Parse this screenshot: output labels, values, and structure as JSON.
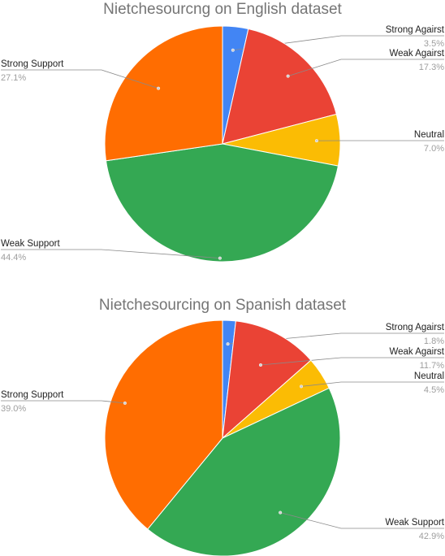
{
  "chart_data": [
    {
      "type": "pie",
      "title": "Nietchesourcng on English dataset",
      "categories": [
        "Strong Against",
        "Weak Against",
        "Neutral",
        "Weak Support",
        "Strong Support"
      ],
      "display_labels": [
        "Strong Agairst",
        "Weak Agairst",
        "Neutral",
        "Weak Support",
        "Strong Support"
      ],
      "values": [
        3.5,
        17.3,
        7.0,
        44.4,
        27.1
      ],
      "value_labels": [
        "3.5%",
        "17.3%",
        "7.0%",
        "44.4%",
        "27.1%"
      ],
      "colors": [
        "#4285f4",
        "#ea4335",
        "#fbbc04",
        "#34a853",
        "#ff6d01"
      ]
    },
    {
      "type": "pie",
      "title": "Nietchesourcing on Spanish dataset",
      "categories": [
        "Strong Against",
        "Weak Against",
        "Neutral",
        "Weak Support",
        "Strong Support"
      ],
      "display_labels": [
        "Strong Agairst",
        "Weak Agairst",
        "Neutral",
        "Weak Support",
        "Strong Support"
      ],
      "values": [
        1.8,
        11.7,
        4.5,
        42.9,
        39.0
      ],
      "value_labels": [
        "1.8%",
        "11.7%",
        "4.5%",
        "42.9%",
        "39.0%"
      ],
      "colors": [
        "#4285f4",
        "#ea4335",
        "#fbbc04",
        "#34a853",
        "#ff6d01"
      ]
    }
  ]
}
